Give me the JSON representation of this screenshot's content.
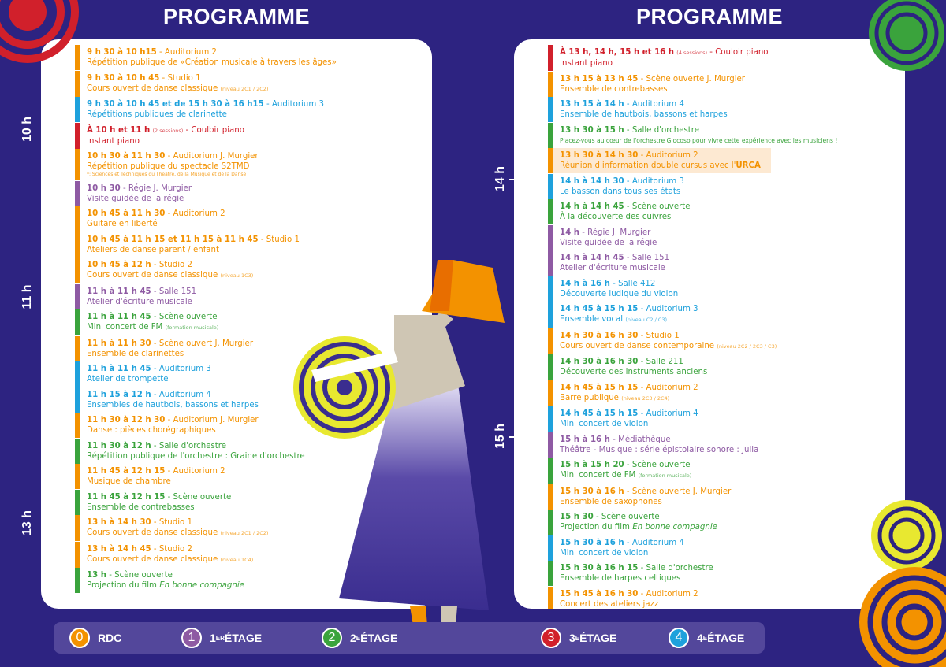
{
  "colors": {
    "orange": "#f39200",
    "purple": "#8e5aa3",
    "blue": "#1ea1dc",
    "red": "#d1202b",
    "green": "#3aa33c",
    "background": "#2d2381"
  },
  "left": {
    "title": "PROGRAMME",
    "hours": [
      "10 h",
      "11 h",
      "13 h"
    ],
    "entries": [
      {
        "color": "orange",
        "time": "9 h 30 à 10 h15",
        "place": "Auditorium 2",
        "desc": "Répétition publique de «Création musicale à travers les âges»"
      },
      {
        "color": "orange",
        "time": "9 h 30 à 10 h 45",
        "place": "Studio 1",
        "desc": "Cours ouvert de danse classique",
        "desc_note": "(niveau 2C1 / 2C2)"
      },
      {
        "color": "blue",
        "time": "9 h 30 à 10 h 45 et de 15 h 30 à 16 h15",
        "place": "Auditorium 3",
        "desc": "Répétitions publiques de clarinette"
      },
      {
        "color": "red",
        "time": "À 10 h et 11 h",
        "time_note": "(2 sessions)",
        "place": "Coulbir piano",
        "desc": "Instant piano"
      },
      {
        "color": "orange",
        "time": "10 h 30 à 11 h 30",
        "place": "Auditorium J. Murgier",
        "desc": "Répétition publique du spectacle S2TMD",
        "footnote": "*: Sciences et Techniques du Théâtre, de la Musique et de la Danse"
      },
      {
        "color": "purple",
        "time": "10 h 30",
        "place": "Régie J. Murgier",
        "desc": "Visite guidée de la régie"
      },
      {
        "color": "orange",
        "time": "10 h 45 à 11 h 30",
        "place": "Auditorium 2",
        "desc": "Guitare en liberté"
      },
      {
        "color": "orange",
        "time": "10 h 45 à 11 h 15 et 11 h 15 à 11 h 45",
        "place": "Studio 1",
        "desc": "Ateliers de danse parent / enfant"
      },
      {
        "color": "orange",
        "time": "10 h 45 à 12 h",
        "place": "Studio 2",
        "desc": "Cours ouvert de danse classique",
        "desc_note": "(niveau 1C3)"
      },
      {
        "color": "purple",
        "time": "11 h à 11 h 45",
        "place": "Salle 151",
        "desc": "Atelier d'écriture musicale"
      },
      {
        "color": "green",
        "time": "11 h à 11 h 45",
        "place": "Scène ouverte",
        "desc": "Mini concert de FM",
        "desc_note": "(formation musicale)"
      },
      {
        "color": "orange",
        "time": "11 h à 11 h 30",
        "place": "Scène ouvert J. Murgier",
        "desc": "Ensemble de clarinettes"
      },
      {
        "color": "blue",
        "time": "11 h à 11 h 45",
        "place": "Auditorium 3",
        "desc": "Atelier de trompette"
      },
      {
        "color": "blue",
        "time": "11 h 15 à 12 h",
        "place": "Auditorium 4",
        "desc": "Ensembles de hautbois, bassons et harpes"
      },
      {
        "color": "orange",
        "time": "11 h 30 à 12 h 30",
        "place": "Auditorium J. Murgier",
        "desc": "Danse : pièces chorégraphiques"
      },
      {
        "color": "green",
        "time": "11 h 30 à 12 h",
        "place": "Salle d'orchestre",
        "desc": "Répétition publique de l'orchestre : Graine d'orchestre"
      },
      {
        "color": "orange",
        "time": "11 h 45 à 12 h 15",
        "place": "Auditorium 2",
        "desc": "Musique de chambre"
      },
      {
        "color": "green",
        "time": "11 h 45 à 12 h 15",
        "place": "Scène ouverte",
        "desc": "Ensemble de contrebasses"
      },
      {
        "color": "orange",
        "time": "13 h à 14 h 30",
        "place": "Studio 1",
        "desc": "Cours ouvert de danse classique",
        "desc_note": "(niveau 2C1 / 2C2)"
      },
      {
        "color": "orange",
        "time": "13 h à 14 h 45",
        "place": "Studio 2",
        "desc": "Cours ouvert de danse classique",
        "desc_note": "(niveau 1C4)"
      },
      {
        "color": "green",
        "time": "13 h",
        "place": "Scène ouverte",
        "desc": "Projection du film ",
        "desc_italic": "En bonne compagnie"
      }
    ]
  },
  "right": {
    "title": "PROGRAMME",
    "hours": [
      "14 h",
      "15 h"
    ],
    "entries": [
      {
        "color": "red",
        "time": "À 13 h, 14 h, 15 h et 16 h",
        "time_note": "(4 sessions)",
        "place": "Couloir piano",
        "desc": "Instant piano"
      },
      {
        "color": "orange",
        "time": "13 h 15 à 13 h 45",
        "place": "Scène ouverte J. Murgier",
        "desc": "Ensemble de contrebasses"
      },
      {
        "color": "blue",
        "time": "13 h 15 à 14 h",
        "place": "Auditorium 4",
        "desc": "Ensemble de hautbois, bassons et harpes"
      },
      {
        "color": "green",
        "time": "13 h 30 à 15 h",
        "place": "Salle d'orchestre",
        "desc": "Placez-vous au cœur de l'orchestre Giocoso pour vivre cette expérience avec les musiciens !",
        "small": true
      },
      {
        "color": "orange",
        "time": "13 h 30 à 14 h 30",
        "place": "Auditorium 2",
        "desc": "Réunion d'information double cursus avec l'",
        "desc_bold": "URCA",
        "highlight": true
      },
      {
        "color": "blue",
        "time": "14 h à 14 h 30",
        "place": "Auditorium 3",
        "desc": "Le basson dans tous ses états"
      },
      {
        "color": "green",
        "time": "14 h à 14 h 45",
        "place": "Scène ouverte",
        "desc": "À la découverte des cuivres"
      },
      {
        "color": "purple",
        "time": "14 h",
        "place": "Régie J. Murgier",
        "desc": "Visite guidée de la régie"
      },
      {
        "color": "purple",
        "time": "14 h à 14 h 45",
        "place": "Salle 151",
        "desc": "Atelier d'écriture musicale"
      },
      {
        "color": "blue",
        "time": "14 h à 16 h",
        "place": "Salle 412",
        "desc": "Découverte ludique du violon"
      },
      {
        "color": "blue",
        "time": "14 h 45 à 15 h 15",
        "place": "Auditorium 3",
        "desc": "Ensemble vocal",
        "desc_note": "(niveau C2 / C3)"
      },
      {
        "color": "orange",
        "time": "14 h 30 à 16 h 30",
        "place": "Studio 1",
        "desc": "Cours ouvert de danse contemporaine",
        "desc_note": "(niveau 2C2 / 2C3 / C3)"
      },
      {
        "color": "green",
        "time": "14 h 30 à 16 h 30",
        "place": "Salle 211",
        "desc": "Découverte des instruments anciens"
      },
      {
        "color": "orange",
        "time": "14 h 45 à 15 h 15",
        "place": "Auditorium 2",
        "desc": "Barre publique",
        "desc_note": "(niveau 2C3 / 2C4)"
      },
      {
        "color": "blue",
        "time": "14 h 45 à 15 h 15",
        "place": "Auditorium 4",
        "desc": "Mini concert de violon"
      },
      {
        "color": "purple",
        "time": "15 h à 16 h",
        "place": "Médiathèque",
        "desc": "Théâtre - Musique : série épistolaire sonore : Julia"
      },
      {
        "color": "green",
        "time": "15 h à 15 h 20",
        "place": "Scène ouverte",
        "desc": "Mini concert de FM",
        "desc_note": "(formation musicale)"
      },
      {
        "color": "orange",
        "time": "15 h 30 à 16 h",
        "place": "Scène ouverte J. Murgier",
        "desc": "Ensemble de saxophones"
      },
      {
        "color": "green",
        "time": "15 h 30",
        "place": "Scène ouverte",
        "desc": "Projection du film ",
        "desc_italic": "En bonne compagnie"
      },
      {
        "color": "blue",
        "time": "15 h 30 à 16 h",
        "place": "Auditorium 4",
        "desc": "Mini concert de violon"
      },
      {
        "color": "green",
        "time": "15 h 30 à 16 h 15",
        "place": "Salle d'orchestre",
        "desc": "Ensemble de harpes celtiques"
      },
      {
        "color": "orange",
        "time": "15 h 45 à 16 h 30",
        "place": "Auditorium 2",
        "desc": "Concert des ateliers jazz"
      }
    ]
  },
  "legend": [
    {
      "num": "0",
      "label": "RDC",
      "sup": "",
      "color": "orange"
    },
    {
      "num": "1",
      "label": "1",
      "sup": "ER",
      "label2": " ÉTAGE",
      "color": "purple"
    },
    {
      "num": "2",
      "label": "2",
      "sup": "E",
      "label2": " ÉTAGE",
      "color": "green"
    },
    {
      "num": "3",
      "label": "3",
      "sup": "E",
      "label2": " ÉTAGE",
      "color": "red"
    },
    {
      "num": "4",
      "label": "4",
      "sup": "E",
      "label2": " ÉTAGE",
      "color": "blue"
    }
  ]
}
